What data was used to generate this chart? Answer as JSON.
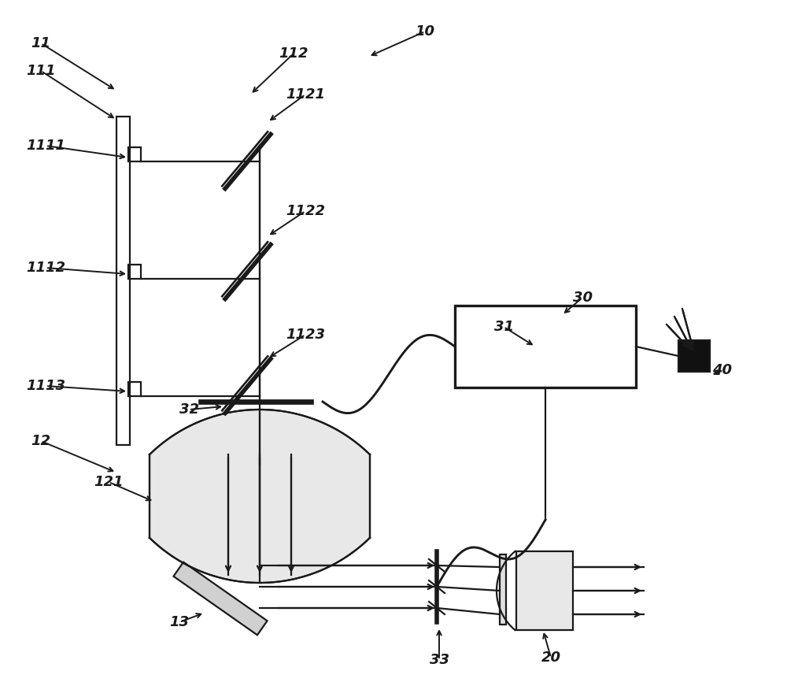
{
  "bg_color": "#ffffff",
  "lc": "#1a1a1a",
  "lw": 1.6,
  "fig_w": 10.0,
  "fig_h": 8.85,
  "dpi": 100
}
